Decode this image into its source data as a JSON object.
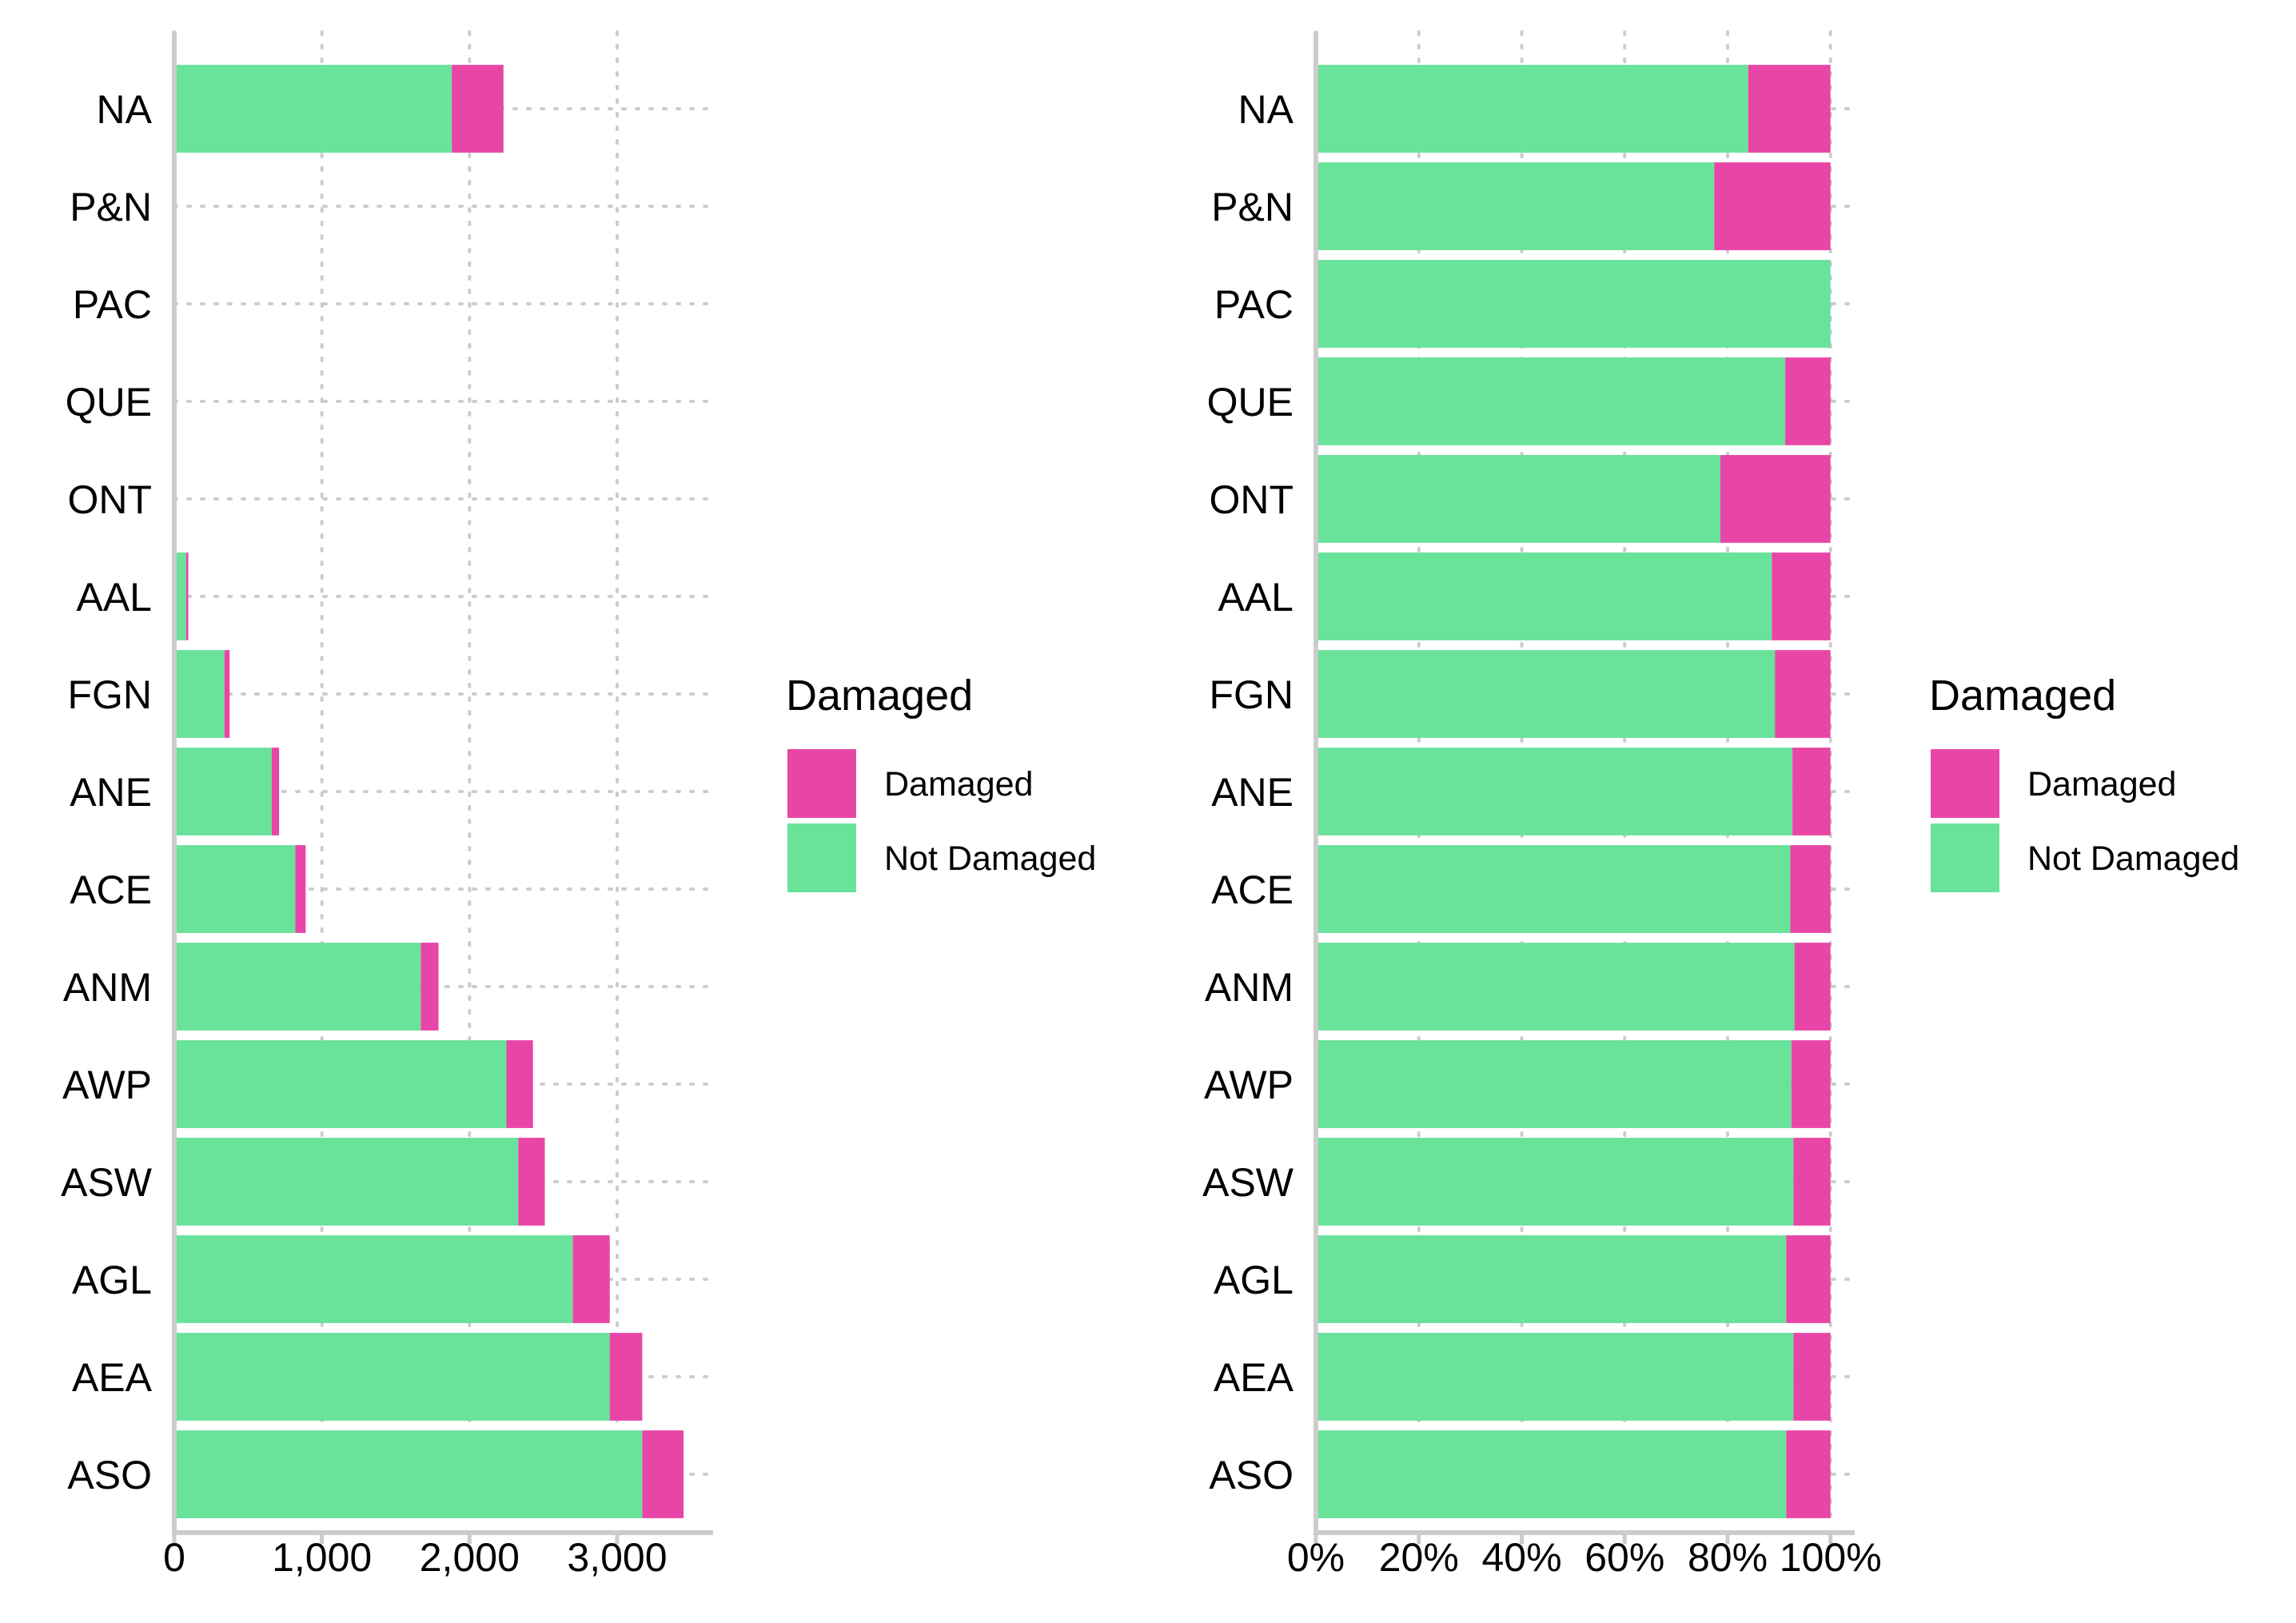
{
  "chart_data": [
    {
      "type": "bar",
      "orientation": "horizontal",
      "stacked": true,
      "categories": [
        "NA",
        "P&N",
        "PAC",
        "QUE",
        "ONT",
        "AAL",
        "FGN",
        "ANE",
        "ACE",
        "ANM",
        "AWP",
        "ASW",
        "AGL",
        "AEA",
        "ASO"
      ],
      "series": [
        {
          "name": "Not Damaged",
          "color": "#69E29A",
          "values": [
            1880,
            0,
            0,
            0,
            0,
            80,
            340,
            660,
            820,
            1670,
            2250,
            2330,
            2700,
            2950,
            3170
          ]
        },
        {
          "name": "Damaged",
          "color": "#E846A7",
          "values": [
            350,
            0,
            0,
            0,
            0,
            15,
            35,
            50,
            70,
            120,
            180,
            180,
            250,
            220,
            280
          ]
        }
      ],
      "x_ticks": [
        0,
        1000,
        2000,
        3000
      ],
      "x_tick_labels": [
        "0",
        "1,000",
        "2,000",
        "3,000"
      ],
      "xlim": [
        0,
        3650
      ],
      "grid": true,
      "legend": {
        "title": "Damaged",
        "position": "right",
        "entries": [
          "Damaged",
          "Not Damaged"
        ]
      }
    },
    {
      "type": "bar",
      "orientation": "horizontal",
      "stacked": true,
      "normalized": true,
      "categories": [
        "NA",
        "P&N",
        "PAC",
        "QUE",
        "ONT",
        "AAL",
        "FGN",
        "ANE",
        "ACE",
        "ANM",
        "AWP",
        "ASW",
        "AGL",
        "AEA",
        "ASO"
      ],
      "series": [
        {
          "name": "Not Damaged",
          "color": "#69E29A",
          "values": [
            0.84,
            0.774,
            1.0,
            0.912,
            0.786,
            0.886,
            0.892,
            0.926,
            0.922,
            0.93,
            0.924,
            0.928,
            0.914,
            0.928,
            0.914
          ]
        },
        {
          "name": "Damaged",
          "color": "#E846A7",
          "values": [
            0.16,
            0.226,
            0.0,
            0.088,
            0.214,
            0.114,
            0.108,
            0.074,
            0.078,
            0.07,
            0.076,
            0.072,
            0.086,
            0.072,
            0.086
          ]
        }
      ],
      "x_ticks": [
        0,
        0.2,
        0.4,
        0.6,
        0.8,
        1.0
      ],
      "x_tick_labels": [
        "0%",
        "20%",
        "40%",
        "60%",
        "80%",
        "100%"
      ],
      "xlim": [
        0,
        1.047
      ],
      "grid": true,
      "legend": {
        "title": "Damaged",
        "position": "right",
        "entries": [
          "Damaged",
          "Not Damaged"
        ]
      }
    }
  ]
}
